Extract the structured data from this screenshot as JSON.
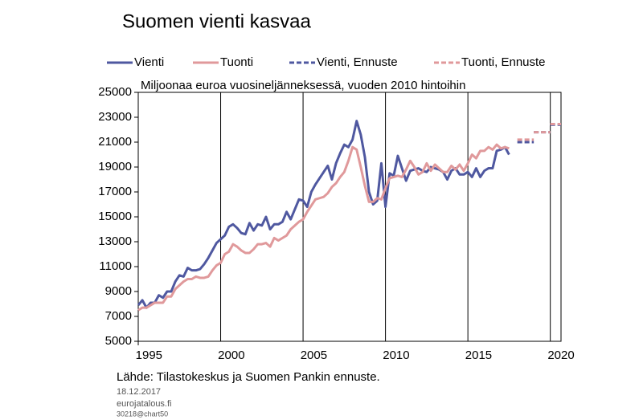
{
  "chart_data": {
    "type": "line",
    "title": "Suomen vienti kasvaa",
    "subtitle": "Miljoonaa euroa vuosineljänneksessä, vuoden 2010 hintoihin",
    "source": "Lähde: Tilastokeskus ja Suomen Pankin ennuste.",
    "footer": [
      "18.12.2017",
      "eurojatalous.fi",
      "30218@chart50"
    ],
    "xlim": [
      1995,
      2020.65
    ],
    "xticks": [
      {
        "value": 1995,
        "label": "1995"
      },
      {
        "value": 2000,
        "label": "2000"
      },
      {
        "value": 2005,
        "label": "2005"
      },
      {
        "value": 2010,
        "label": "2010"
      },
      {
        "value": 2015,
        "label": "2015"
      },
      {
        "value": 2020,
        "label": "2020"
      }
    ],
    "ylim": [
      5000,
      25000
    ],
    "yticks": [
      5000,
      7000,
      9000,
      11000,
      13000,
      15000,
      17000,
      19000,
      21000,
      23000,
      25000
    ],
    "grid": "x",
    "series": [
      {
        "name": "Vienti",
        "color": "#4f58a0",
        "dashed": false,
        "x": [
          1995,
          1995.25,
          1995.5,
          1995.75,
          1996,
          1996.25,
          1996.5,
          1996.75,
          1997,
          1997.25,
          1997.5,
          1997.75,
          1998,
          1998.25,
          1998.5,
          1998.75,
          1999,
          1999.25,
          1999.5,
          1999.75,
          2000,
          2000.25,
          2000.5,
          2000.75,
          2001,
          2001.25,
          2001.5,
          2001.75,
          2002,
          2002.25,
          2002.5,
          2002.75,
          2003,
          2003.25,
          2003.5,
          2003.75,
          2004,
          2004.25,
          2004.5,
          2004.75,
          2005,
          2005.25,
          2005.5,
          2005.75,
          2006,
          2006.25,
          2006.5,
          2006.75,
          2007,
          2007.25,
          2007.5,
          2007.75,
          2008,
          2008.25,
          2008.5,
          2008.75,
          2009,
          2009.25,
          2009.5,
          2009.75,
          2010,
          2010.25,
          2010.5,
          2010.75,
          2011,
          2011.25,
          2011.5,
          2011.75,
          2012,
          2012.25,
          2012.5,
          2012.75,
          2013,
          2013.25,
          2013.5,
          2013.75,
          2014,
          2014.25,
          2014.5,
          2014.75,
          2015,
          2015.25,
          2015.5,
          2015.75,
          2016,
          2016.25,
          2016.5,
          2016.75,
          2017,
          2017.25,
          2017.5
        ],
        "values": [
          7900,
          8300,
          7700,
          8100,
          8100,
          8700,
          8500,
          9000,
          9000,
          9800,
          10300,
          10200,
          10900,
          10700,
          10700,
          10800,
          11200,
          11700,
          12300,
          12900,
          13200,
          13500,
          14200,
          14400,
          14100,
          13700,
          13600,
          14500,
          13900,
          14400,
          14300,
          15000,
          14000,
          14400,
          14400,
          14600,
          15400,
          14800,
          15600,
          16400,
          16300,
          15800,
          17000,
          17600,
          18100,
          18600,
          19100,
          18000,
          19300,
          20100,
          20800,
          20600,
          21200,
          22700,
          21600,
          19800,
          17000,
          16000,
          16300,
          19300,
          15800,
          18500,
          18300,
          19900,
          18900,
          17900,
          18700,
          18800,
          18900,
          18700,
          18600,
          19000,
          18900,
          18800,
          18600,
          18000,
          18700,
          18900,
          18400,
          18400,
          18600,
          18200,
          18900,
          18200,
          18700,
          18900,
          18900,
          20300,
          20400,
          20600,
          20000
        ]
      },
      {
        "name": "Tuonti",
        "color": "#e0999b",
        "dashed": false,
        "x": [
          1995,
          1995.25,
          1995.5,
          1995.75,
          1996,
          1996.25,
          1996.5,
          1996.75,
          1997,
          1997.25,
          1997.5,
          1997.75,
          1998,
          1998.25,
          1998.5,
          1998.75,
          1999,
          1999.25,
          1999.5,
          1999.75,
          2000,
          2000.25,
          2000.5,
          2000.75,
          2001,
          2001.25,
          2001.5,
          2001.75,
          2002,
          2002.25,
          2002.5,
          2002.75,
          2003,
          2003.25,
          2003.5,
          2003.75,
          2004,
          2004.25,
          2004.5,
          2004.75,
          2005,
          2005.25,
          2005.5,
          2005.75,
          2006,
          2006.25,
          2006.5,
          2006.75,
          2007,
          2007.25,
          2007.5,
          2007.75,
          2008,
          2008.25,
          2008.5,
          2008.75,
          2009,
          2009.25,
          2009.5,
          2009.75,
          2010,
          2010.25,
          2010.5,
          2010.75,
          2011,
          2011.25,
          2011.5,
          2011.75,
          2012,
          2012.25,
          2012.5,
          2012.75,
          2013,
          2013.25,
          2013.5,
          2013.75,
          2014,
          2014.25,
          2014.5,
          2014.75,
          2015,
          2015.25,
          2015.5,
          2015.75,
          2016,
          2016.25,
          2016.5,
          2016.75,
          2017,
          2017.25,
          2017.5
        ],
        "values": [
          7500,
          7700,
          7700,
          7900,
          8100,
          8100,
          8100,
          8600,
          8600,
          9200,
          9500,
          9800,
          10000,
          10000,
          10200,
          10100,
          10100,
          10200,
          10700,
          11100,
          11300,
          12000,
          12200,
          12800,
          12600,
          12300,
          12100,
          12100,
          12400,
          12800,
          12800,
          12900,
          12600,
          13300,
          13100,
          13300,
          13500,
          14000,
          14300,
          14600,
          14800,
          15400,
          15900,
          16400,
          16500,
          16600,
          16900,
          17400,
          17700,
          18200,
          18600,
          19500,
          20600,
          20400,
          19000,
          17500,
          16200,
          16200,
          16500,
          16400,
          17300,
          18100,
          18200,
          18300,
          18200,
          18800,
          19500,
          19000,
          18400,
          18600,
          19300,
          18700,
          19200,
          18900,
          18600,
          18600,
          19100,
          18800,
          19200,
          18700,
          19300,
          20000,
          19700,
          20300,
          20300,
          20600,
          20400,
          20800,
          20500,
          20600,
          20500
        ]
      },
      {
        "name": "Vienti, Ennuste",
        "color": "#4f58a0",
        "dashed": true,
        "x": [
          2018,
          2019,
          2020
        ],
        "values": [
          21000,
          21800,
          22400
        ]
      },
      {
        "name": "Tuonti, Ennuste",
        "color": "#e0999b",
        "dashed": true,
        "x": [
          2018,
          2019,
          2020
        ],
        "values": [
          21200,
          21800,
          22450
        ]
      }
    ]
  }
}
